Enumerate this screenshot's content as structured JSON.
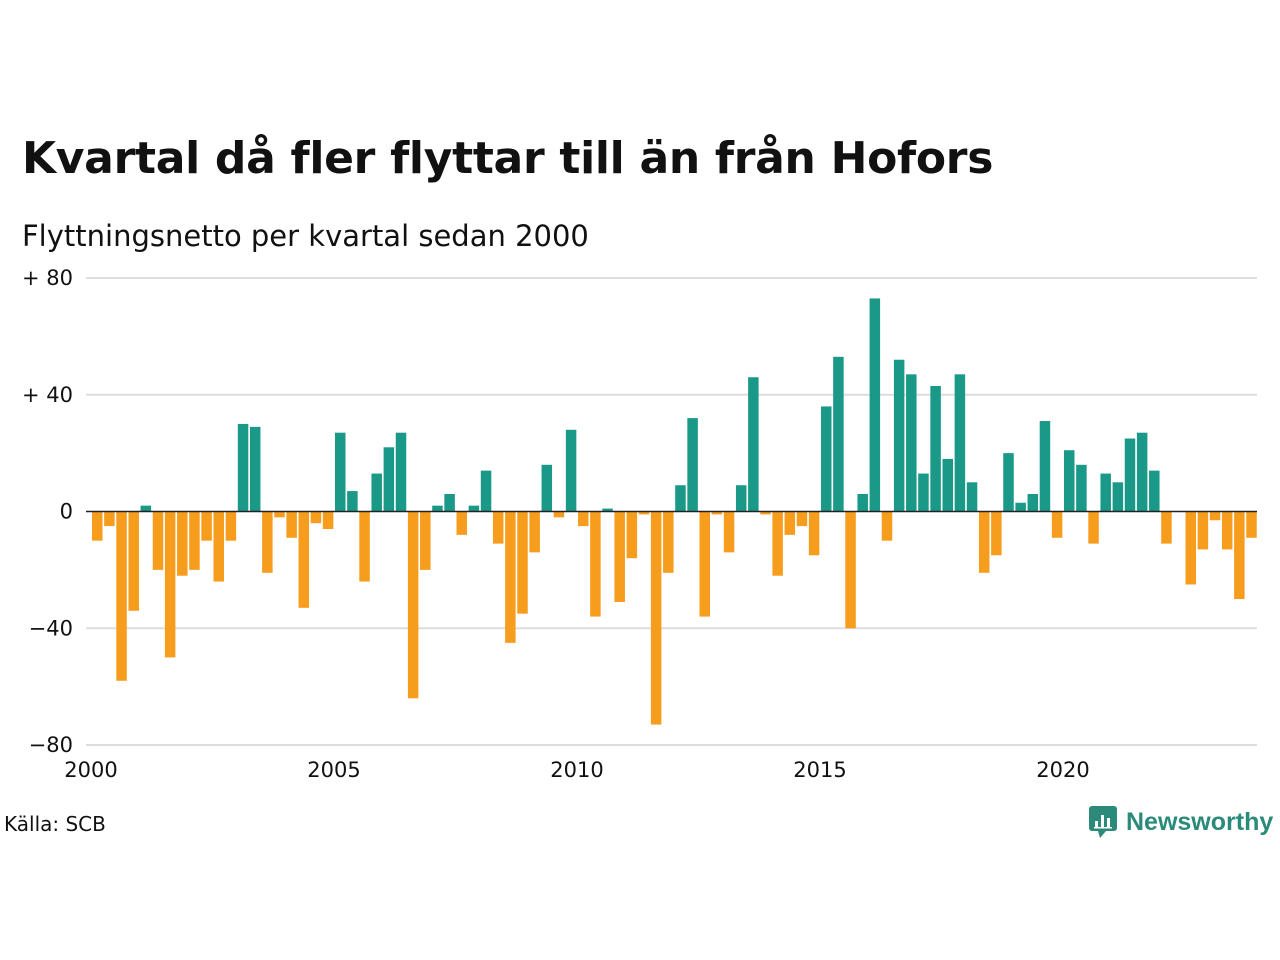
{
  "title": "Kvartal då fler flyttar till än från Hofors",
  "subtitle": "Flyttningsnetto per kvartal sedan 2000",
  "source": "Källa: SCB",
  "brand": {
    "name": "Newsworthy",
    "icon": "newsworthy-logo-icon",
    "color": "#2b8a7a"
  },
  "colors": {
    "positive": "#1a9988",
    "negative": "#f79d1e",
    "grid": "#dddddd",
    "zero": "#222222"
  },
  "chart_data": {
    "type": "bar",
    "title": "Kvartal då fler flyttar till än från Hofors",
    "subtitle": "Flyttningsnetto per kvartal sedan 2000",
    "xlabel": "",
    "ylabel": "",
    "start": "2000 Q1",
    "x_ticks": [
      "2000",
      "2005",
      "2010",
      "2015",
      "2020"
    ],
    "y_ticks": [
      80,
      40,
      0,
      -40,
      -80
    ],
    "y_tick_labels": [
      "+ 80",
      "+ 40",
      "0",
      "−40",
      "−80"
    ],
    "ylim": [
      -80,
      80
    ],
    "grid": true,
    "legend": "none",
    "values": [
      -10,
      -5,
      -58,
      -34,
      2,
      -20,
      -50,
      -22,
      -20,
      -10,
      -24,
      -10,
      30,
      29,
      -21,
      -2,
      -9,
      -33,
      -4,
      -6,
      27,
      7,
      -24,
      13,
      22,
      27,
      -64,
      -20,
      2,
      6,
      -8,
      2,
      14,
      -11,
      -45,
      -35,
      -14,
      16,
      -2,
      28,
      -5,
      -36,
      1,
      -31,
      -16,
      -1,
      -73,
      -21,
      9,
      32,
      -36,
      -1,
      -14,
      9,
      46,
      -1,
      -22,
      -8,
      -5,
      -15,
      36,
      53,
      -40,
      6,
      73,
      -10,
      52,
      47,
      13,
      43,
      18,
      47,
      10,
      -21,
      -15,
      20,
      3,
      6,
      31,
      -9,
      21,
      16,
      -11,
      13,
      10,
      25,
      27,
      14,
      -11,
      0,
      -25,
      -13,
      -3,
      -13,
      -30,
      -9
    ]
  }
}
